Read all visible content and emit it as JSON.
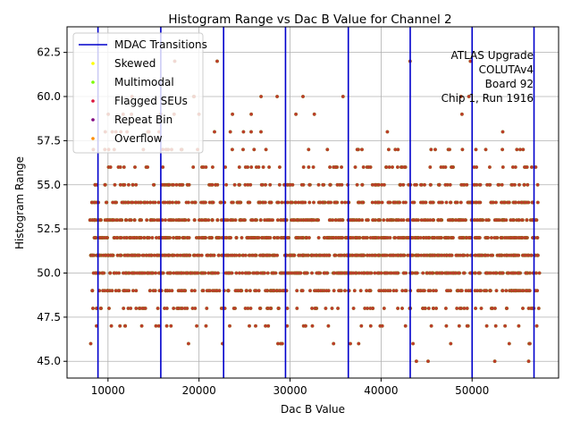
{
  "chart_data": {
    "type": "scatter",
    "title": "Histogram Range vs Dac B Value for Channel 2",
    "xlabel": "Dac B Value",
    "ylabel": "Histogram Range",
    "xlim": [
      5500,
      59500
    ],
    "ylim": [
      44.05,
      63.95
    ],
    "x_ticks": [
      10000,
      20000,
      30000,
      40000,
      50000
    ],
    "x_tick_labels": [
      "10000",
      "20000",
      "30000",
      "40000",
      "50000"
    ],
    "y_ticks": [
      45.0,
      47.5,
      50.0,
      52.5,
      55.0,
      57.5,
      60.0,
      62.5
    ],
    "y_tick_labels": [
      "45.0",
      "47.5",
      "50.0",
      "52.5",
      "55.0",
      "57.5",
      "60.0",
      "62.5"
    ],
    "grid": true,
    "legend_position": "top-left",
    "legend": [
      {
        "label": "MDAC Transitions",
        "kind": "line",
        "color": "#0000cc"
      },
      {
        "label": "Skewed",
        "kind": "dot",
        "color": "#ffff00"
      },
      {
        "label": "Multimodal",
        "kind": "dot",
        "color": "#7cfc00"
      },
      {
        "label": "Flagged SEUs",
        "kind": "dot",
        "color": "#dc143c"
      },
      {
        "label": "Repeat Bin",
        "kind": "dot",
        "color": "#800080"
      },
      {
        "label": "Overflow",
        "kind": "dot",
        "color": "#ff8c00"
      }
    ],
    "mdac_transitions": [
      8900,
      15800,
      22700,
      29500,
      36400,
      43200,
      50000,
      56800
    ],
    "annotation": [
      "ATLAS Upgrade",
      "COLUTAv4",
      "Board 92",
      "Chip 1, Run 1916"
    ],
    "point_color": "#c0392b",
    "point_edge_color": "#8b6914",
    "point_x_range": [
      8000,
      57400
    ],
    "point_levels": [
      45,
      46,
      47,
      48,
      49,
      50,
      51,
      52,
      53,
      54,
      55,
      56,
      57,
      58,
      59,
      60,
      62
    ]
  }
}
